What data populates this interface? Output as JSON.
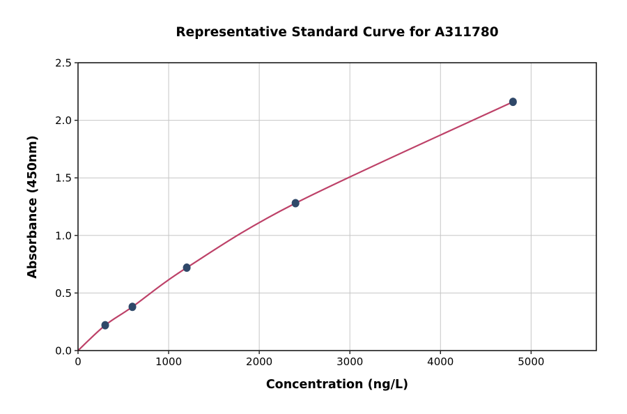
{
  "chart_data": {
    "type": "scatter",
    "title": "Representative Standard Curve for A311780",
    "xlabel": "Concentration (ng/L)",
    "ylabel": "Absorbance (450nm)",
    "series": [
      {
        "name": "standard points",
        "x": [
          300,
          600,
          1200,
          2400,
          4800
        ],
        "y": [
          0.22,
          0.38,
          0.72,
          1.28,
          2.16
        ],
        "marker_color": "#2f4869",
        "marker_radius": 5.5
      }
    ],
    "fit_curve": {
      "x": [
        0,
        300,
        600,
        1200,
        2400,
        4800
      ],
      "y": [
        0.0,
        0.22,
        0.38,
        0.72,
        1.28,
        2.16
      ],
      "color": "#bd4168",
      "line_width": 2.2
    },
    "xlim": [
      0,
      5720
    ],
    "ylim": [
      0,
      2.5
    ],
    "xticks": [
      0,
      1000,
      2000,
      3000,
      4000,
      5000
    ],
    "xtick_labels": [
      "0",
      "1000",
      "2000",
      "3000",
      "4000",
      "5000"
    ],
    "yticks": [
      0,
      0.5,
      1.0,
      1.5,
      2.0,
      2.5
    ],
    "ytick_labels": [
      "0.0",
      "0.5",
      "1.0",
      "1.5",
      "2.0",
      "2.5"
    ],
    "grid": true,
    "colors": {
      "grid": "#c6c6c6",
      "spine": "#1a1a1a",
      "tick": "#1a1a1a",
      "text": "#000000",
      "background": "#ffffff"
    }
  }
}
